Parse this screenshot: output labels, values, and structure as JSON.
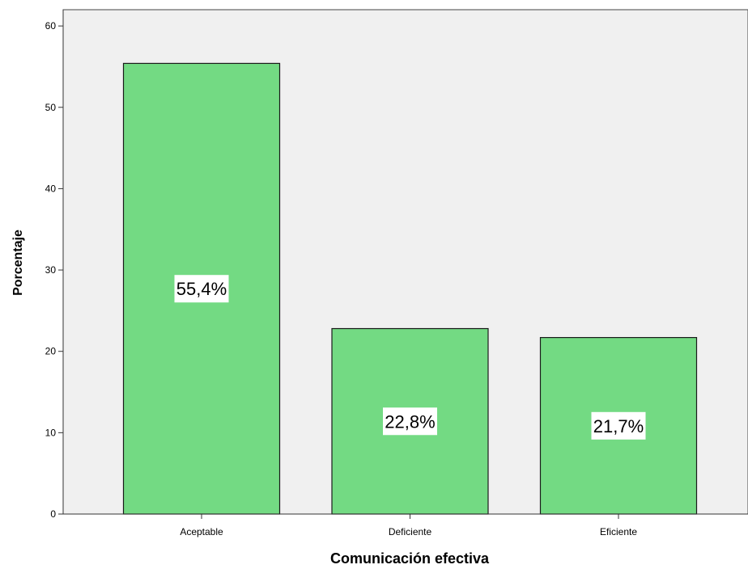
{
  "chart_data": {
    "type": "bar",
    "categories": [
      "Aceptable",
      "Deficiente",
      "Eficiente"
    ],
    "values": [
      55.4,
      22.8,
      21.7
    ],
    "data_labels": [
      "55,4%",
      "22,8%",
      "21,7%"
    ],
    "title": "",
    "xlabel": "Comunicación efectiva",
    "ylabel": "Porcentaje",
    "ylim": [
      0,
      62
    ],
    "yticks": [
      0,
      10,
      20,
      30,
      40,
      50,
      60
    ],
    "grid": false,
    "legend": "none",
    "colors": {
      "bar_fill": "#73DA83",
      "bar_stroke": "#1a1a1a",
      "plot_background": "#F0F0F0",
      "label_background": "#ffffff"
    }
  }
}
